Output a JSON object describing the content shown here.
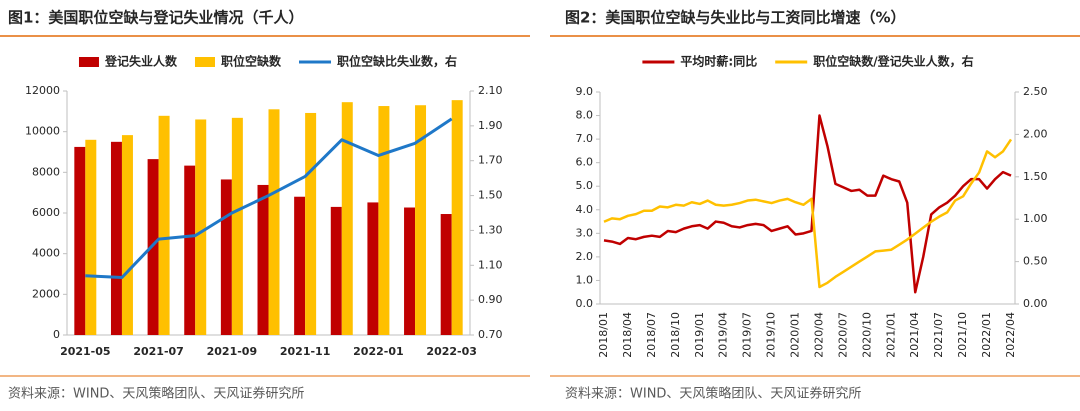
{
  "chart_data": [
    {
      "type": "bar",
      "title": "图1：美国职位空缺与登记失业情况（千人）",
      "source": "资料来源：WIND、天风策略团队、天风证券研究所",
      "categories": [
        "2021-05",
        null,
        "2021-07",
        null,
        "2021-09",
        null,
        "2021-11",
        null,
        "2022-01",
        null,
        "2022-03"
      ],
      "series": [
        {
          "name": "登记失业人数",
          "color": "#c00000",
          "values": [
            9250,
            9500,
            8650,
            8330,
            7650,
            7380,
            6800,
            6300,
            6520,
            6270,
            5950
          ]
        },
        {
          "name": "职位空缺数",
          "color": "#ffc000",
          "values": [
            9600,
            9830,
            10780,
            10600,
            10680,
            11100,
            10920,
            11450,
            11260,
            11300,
            11550
          ]
        },
        {
          "name": "职位空缺比失业数，右",
          "color": "#1f78c8",
          "axis": "y2",
          "values": [
            1.04,
            1.03,
            1.25,
            1.27,
            1.4,
            1.5,
            1.61,
            1.82,
            1.73,
            1.8,
            1.94
          ]
        }
      ],
      "ylim": [
        0,
        12000
      ],
      "yticks": [
        0,
        2000,
        4000,
        6000,
        8000,
        10000,
        12000
      ],
      "y2lim": [
        0.7,
        2.1
      ],
      "y2ticks": [
        {
          "value": 0.7,
          "label": "0.70"
        },
        {
          "value": 0.9,
          "label": "0.90"
        },
        {
          "value": 1.1,
          "label": "1.10"
        },
        {
          "value": 1.3,
          "label": "1.30"
        },
        {
          "value": 1.5,
          "label": "1.50"
        },
        {
          "value": 1.7,
          "label": "1.70"
        },
        {
          "value": 1.9,
          "label": "1.90"
        },
        {
          "value": 2.1,
          "label": "2.10"
        }
      ],
      "grid": false,
      "legend": "top"
    },
    {
      "type": "line",
      "title": "图2：美国职位空缺与失业比与工资同比增速（%）",
      "source": "资料来源：WIND、天风策略团队、天风证券研究所",
      "categories": [
        "2018/01",
        null,
        null,
        "2018/04",
        null,
        null,
        "2018/07",
        null,
        null,
        "2018/10",
        null,
        null,
        "2019/01",
        null,
        null,
        "2019/04",
        null,
        null,
        "2019/07",
        null,
        null,
        "2019/10",
        null,
        null,
        "2020/01",
        null,
        null,
        "2020/04",
        null,
        null,
        "2020/07",
        null,
        null,
        "2020/10",
        null,
        null,
        "2021/01",
        null,
        null,
        "2021/04",
        null,
        null,
        "2021/07",
        null,
        null,
        "2021/10",
        null,
        null,
        "2022/01",
        null,
        null,
        "2022/04"
      ],
      "series": [
        {
          "name": "平均时薪:同比",
          "color": "#c00000",
          "values": [
            2.7,
            2.65,
            2.55,
            2.8,
            2.75,
            2.85,
            2.9,
            2.85,
            3.1,
            3.05,
            3.2,
            3.3,
            3.35,
            3.2,
            3.5,
            3.45,
            3.3,
            3.25,
            3.35,
            3.4,
            3.35,
            3.1,
            3.2,
            3.3,
            2.95,
            3.0,
            3.1,
            8.0,
            6.7,
            5.1,
            4.95,
            4.8,
            4.85,
            4.6,
            4.6,
            5.45,
            5.3,
            5.2,
            4.3,
            0.5,
            2.0,
            3.8,
            4.1,
            4.3,
            4.6,
            5.0,
            5.3,
            5.3,
            4.9,
            5.3,
            5.6,
            5.45
          ]
        },
        {
          "name": "职位空缺数/登记失业人数，右",
          "color": "#ffc000",
          "axis": "y2",
          "values": [
            0.97,
            1.01,
            1.0,
            1.04,
            1.06,
            1.1,
            1.1,
            1.15,
            1.14,
            1.17,
            1.16,
            1.2,
            1.18,
            1.22,
            1.17,
            1.16,
            1.17,
            1.19,
            1.22,
            1.23,
            1.21,
            1.19,
            1.22,
            1.24,
            1.2,
            1.17,
            1.24,
            0.2,
            0.25,
            0.32,
            0.38,
            0.44,
            0.5,
            0.56,
            0.62,
            0.63,
            0.64,
            0.7,
            0.76,
            0.83,
            0.9,
            0.97,
            1.03,
            1.08,
            1.22,
            1.27,
            1.42,
            1.55,
            1.8,
            1.73,
            1.8,
            1.94
          ]
        }
      ],
      "ylim": [
        0,
        9
      ],
      "yticks": [
        {
          "value": 0,
          "label": "0.0"
        },
        {
          "value": 1,
          "label": "1.0"
        },
        {
          "value": 2,
          "label": "2.0"
        },
        {
          "value": 3,
          "label": "3.0"
        },
        {
          "value": 4,
          "label": "4.0"
        },
        {
          "value": 5,
          "label": "5.0"
        },
        {
          "value": 6,
          "label": "6.0"
        },
        {
          "value": 7,
          "label": "7.0"
        },
        {
          "value": 8,
          "label": "8.0"
        },
        {
          "value": 9,
          "label": "9.0"
        }
      ],
      "y2lim": [
        0,
        2.5
      ],
      "y2ticks": [
        {
          "value": 0,
          "label": "0.00"
        },
        {
          "value": 0.5,
          "label": "0.50"
        },
        {
          "value": 1,
          "label": "1.00"
        },
        {
          "value": 1.5,
          "label": "1.50"
        },
        {
          "value": 2,
          "label": "2.00"
        },
        {
          "value": 2.5,
          "label": "2.50"
        }
      ],
      "grid": false,
      "legend": "top"
    }
  ]
}
